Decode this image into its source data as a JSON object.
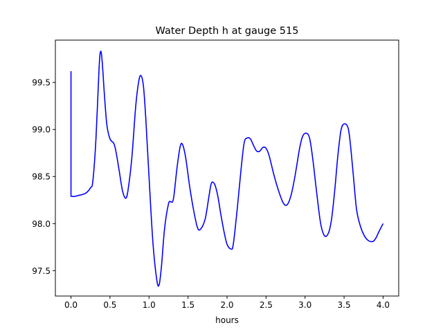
{
  "chart_data": {
    "type": "line",
    "title": "Water Depth h at gauge 515",
    "xlabel": "hours",
    "ylabel": "",
    "xlim": [
      -0.2,
      4.2
    ],
    "ylim": [
      97.23,
      99.95
    ],
    "xticks": [
      0.0,
      0.5,
      1.0,
      1.5,
      2.0,
      2.5,
      3.0,
      3.5,
      4.0
    ],
    "xtick_labels": [
      "0.0",
      "0.5",
      "1.0",
      "1.5",
      "2.0",
      "2.5",
      "3.0",
      "3.5",
      "4.0"
    ],
    "yticks": [
      97.5,
      98.0,
      98.5,
      99.0,
      99.5
    ],
    "ytick_labels": [
      "97.5",
      "98.0",
      "98.5",
      "99.0",
      "99.5"
    ],
    "grid": false,
    "series": [
      {
        "color": "#0000ff",
        "x": [
          0.0,
          0.0,
          0.05,
          0.1,
          0.15,
          0.2,
          0.25,
          0.28,
          0.32,
          0.36,
          0.38,
          0.4,
          0.43,
          0.46,
          0.5,
          0.55,
          0.58,
          0.62,
          0.66,
          0.7,
          0.73,
          0.78,
          0.83,
          0.87,
          0.9,
          0.93,
          0.96,
          1.0,
          1.05,
          1.1,
          1.13,
          1.16,
          1.2,
          1.25,
          1.28,
          1.3,
          1.32,
          1.36,
          1.4,
          1.43,
          1.47,
          1.52,
          1.57,
          1.62,
          1.66,
          1.72,
          1.77,
          1.8,
          1.84,
          1.88,
          1.92,
          1.96,
          2.0,
          2.05,
          2.08,
          2.13,
          2.18,
          2.22,
          2.26,
          2.3,
          2.34,
          2.38,
          2.42,
          2.46,
          2.5,
          2.54,
          2.6,
          2.66,
          2.72,
          2.77,
          2.82,
          2.87,
          2.93,
          2.97,
          3.02,
          3.06,
          3.1,
          3.15,
          3.2,
          3.25,
          3.3,
          3.34,
          3.38,
          3.42,
          3.46,
          3.5,
          3.55,
          3.58,
          3.62,
          3.66,
          3.71,
          3.76,
          3.81,
          3.87,
          3.91,
          3.95,
          4.0
        ],
        "y": [
          99.62,
          98.29,
          98.29,
          98.3,
          98.31,
          98.33,
          98.38,
          98.45,
          98.9,
          99.65,
          99.83,
          99.72,
          99.35,
          99.05,
          98.9,
          98.85,
          98.75,
          98.55,
          98.35,
          98.27,
          98.35,
          98.7,
          99.25,
          99.52,
          99.57,
          99.45,
          99.1,
          98.5,
          97.8,
          97.4,
          97.35,
          97.55,
          97.95,
          98.21,
          98.23,
          98.23,
          98.3,
          98.6,
          98.82,
          98.84,
          98.7,
          98.4,
          98.15,
          97.96,
          97.94,
          98.05,
          98.3,
          98.43,
          98.42,
          98.3,
          98.1,
          97.92,
          97.78,
          97.73,
          97.78,
          98.15,
          98.58,
          98.86,
          98.91,
          98.9,
          98.83,
          98.77,
          98.77,
          98.81,
          98.8,
          98.72,
          98.52,
          98.35,
          98.22,
          98.2,
          98.3,
          98.5,
          98.8,
          98.93,
          98.96,
          98.9,
          98.68,
          98.32,
          98.0,
          97.87,
          97.9,
          98.05,
          98.35,
          98.72,
          98.99,
          99.06,
          99.02,
          98.85,
          98.5,
          98.15,
          97.97,
          97.87,
          97.82,
          97.81,
          97.85,
          97.92,
          98.0
        ]
      }
    ]
  }
}
